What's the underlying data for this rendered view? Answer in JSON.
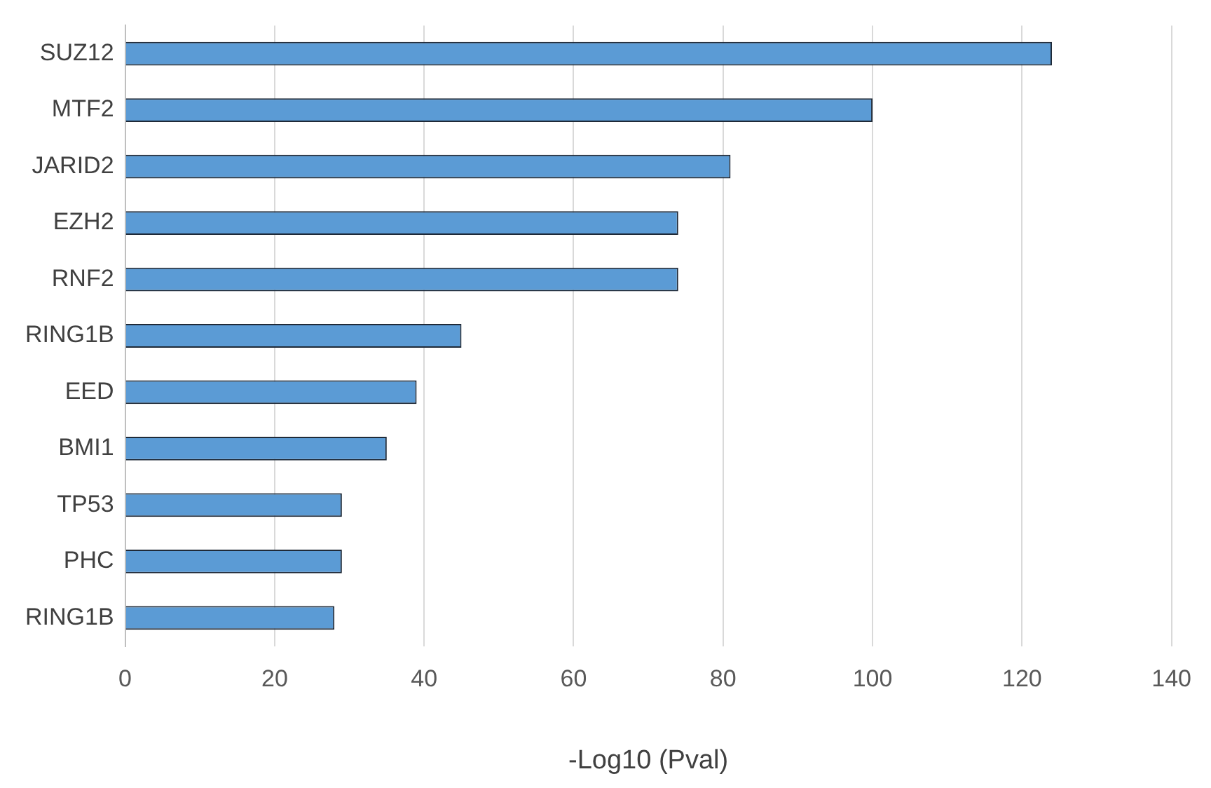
{
  "chart_data": {
    "type": "bar",
    "orientation": "horizontal",
    "xlabel": "-Log10 (Pval)",
    "categories": [
      "SUZ12",
      "MTF2",
      "JARID2",
      "EZH2",
      "RNF2",
      "RING1B",
      "EED",
      "BMI1",
      "TP53",
      "PHC",
      "RING1B"
    ],
    "values": [
      124,
      100,
      81,
      74,
      74,
      45,
      39,
      35,
      29,
      29,
      28
    ],
    "color": "#5b9bd5",
    "xlim": [
      0,
      140
    ],
    "xticks": [
      0,
      20,
      40,
      60,
      80,
      100,
      120,
      140
    ],
    "grid": "x",
    "legend": false
  }
}
